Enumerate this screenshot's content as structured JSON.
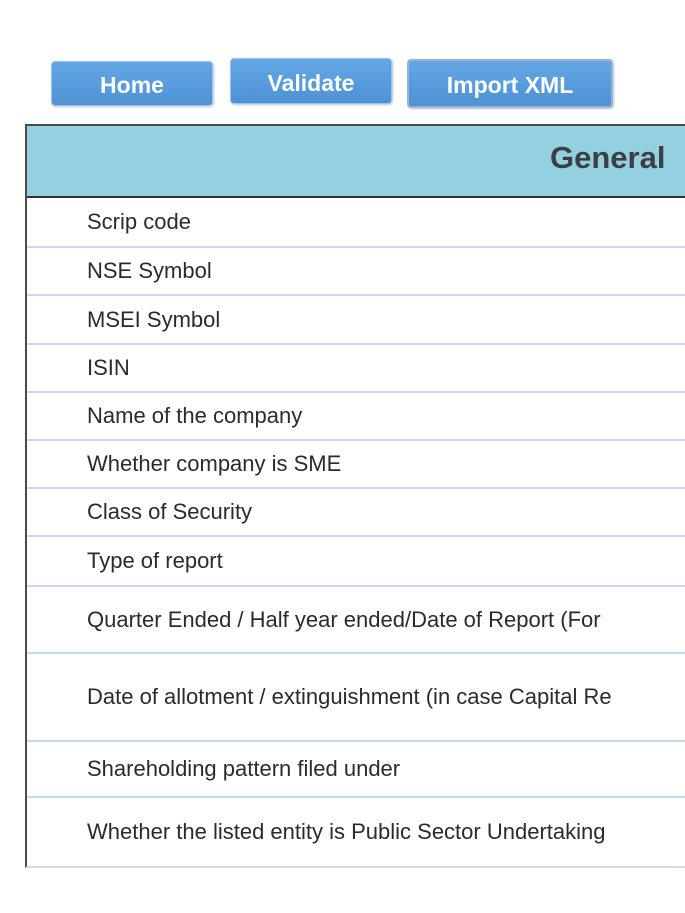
{
  "toolbar": {
    "home_label": "Home",
    "validate_label": "Validate",
    "import_label": "Import XML"
  },
  "section": {
    "title": "General"
  },
  "rows": [
    {
      "label": "Scrip code"
    },
    {
      "label": "NSE Symbol"
    },
    {
      "label": "MSEI Symbol"
    },
    {
      "label": "ISIN"
    },
    {
      "label": "Name of the company"
    },
    {
      "label": "Whether company is SME"
    },
    {
      "label": "Class of Security"
    },
    {
      "label": "Type of report"
    },
    {
      "label": "Quarter Ended / Half year ended/Date of Report (For"
    },
    {
      "label": "Date of allotment / extinguishment (in case Capital Re"
    },
    {
      "label": "Shareholding pattern filed under"
    },
    {
      "label": "Whether the listed entity is Public Sector Undertaking"
    }
  ]
}
